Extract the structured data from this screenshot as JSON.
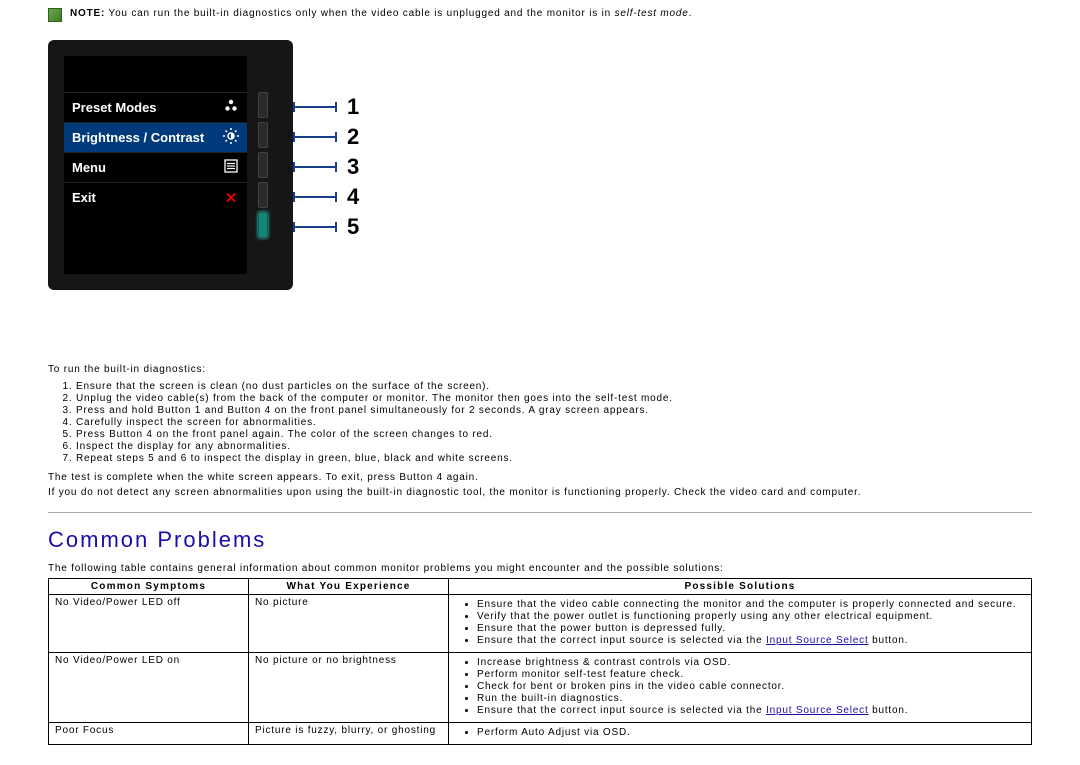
{
  "note": {
    "prefix": "NOTE:",
    "body_before": "You can run the built-in diagnostics only when the video cable is unplugged and the monitor is in ",
    "italic": "self-test mode",
    "body_after": "."
  },
  "osd": {
    "rows": [
      {
        "label": "Preset Modes"
      },
      {
        "label": "Brightness / Contrast"
      },
      {
        "label": "Menu"
      },
      {
        "label": "Exit"
      }
    ]
  },
  "callouts": [
    "1",
    "2",
    "3",
    "4",
    "5"
  ],
  "diag": {
    "intro": "To run the built-in diagnostics:",
    "steps": [
      "Ensure that the screen is clean (no dust particles on the surface of the screen).",
      "Unplug the video cable(s) from the back of the computer or monitor. The monitor then goes into the self-test mode.",
      "Press and hold Button 1 and Button 4 on the front panel simultaneously for 2 seconds. A gray screen appears.",
      "Carefully inspect the screen for abnormalities.",
      "Press Button 4 on the front panel again. The color of the screen changes to red.",
      "Inspect the display for any abnormalities.",
      "Repeat steps 5 and 6 to inspect the display in green, blue, black and white screens."
    ],
    "complete": "The test is complete when the white screen appears. To exit, press Button 4 again.",
    "nodetect": "If you do not detect any screen abnormalities upon using the built-in diagnostic tool, the monitor is functioning properly. Check the video card and computer."
  },
  "common": {
    "heading": "Common Problems",
    "intro": "The following table contains general information about common monitor problems you might encounter and the possible solutions:",
    "headers": [
      "Common Symptoms",
      "What You Experience",
      "Possible Solutions"
    ],
    "rows": [
      {
        "symptom": "No Video/Power LED off",
        "exp": "No picture",
        "solutions": [
          {
            "text": "Ensure that the video cable connecting the monitor and the computer is properly connected and secure."
          },
          {
            "text": "Verify that the power outlet is functioning properly using any other electrical equipment."
          },
          {
            "text": "Ensure that the power button is depressed fully."
          },
          {
            "text_before": "Ensure that the correct input source is selected via the ",
            "link": "Input Source Select",
            "text_after": " button."
          }
        ]
      },
      {
        "symptom": "No Video/Power LED on",
        "exp": "No picture or no brightness",
        "solutions": [
          {
            "text": "Increase brightness & contrast controls via OSD."
          },
          {
            "text": "Perform monitor self-test feature check."
          },
          {
            "text": "Check for bent or broken pins in the video cable connector."
          },
          {
            "text": "Run the built-in diagnostics."
          },
          {
            "text_before": "Ensure that the correct input source is selected via the ",
            "link": "Input Source Select",
            "text_after": " button."
          }
        ]
      },
      {
        "symptom": "Poor Focus",
        "exp": "Picture is fuzzy, blurry, or ghosting",
        "solutions": [
          {
            "text": "Perform Auto Adjust via OSD."
          }
        ]
      }
    ]
  }
}
